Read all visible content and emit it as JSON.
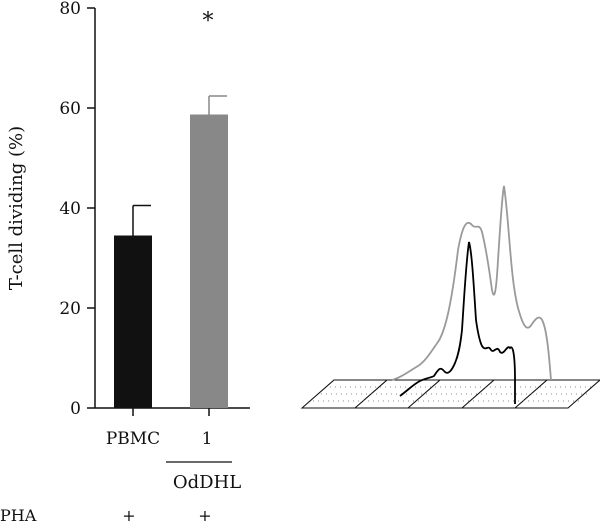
{
  "chart_data": {
    "type": "bar",
    "ylabel": "T-cell dividing (%)",
    "ylim": [
      0,
      80
    ],
    "yticks": [
      0,
      20,
      40,
      60,
      80
    ],
    "categories": [
      "PBMC",
      "1"
    ],
    "group_label": "OdDHL",
    "row_label": "PHA",
    "row_values": [
      "+",
      "+"
    ],
    "values": [
      34.5,
      58.7
    ],
    "errors": [
      6.0,
      3.7
    ],
    "bar_colors": [
      "#111111",
      "#888888"
    ],
    "annotation": "*",
    "histogram_colors": {
      "back": "#9a9a9a",
      "front": "#000000"
    }
  }
}
